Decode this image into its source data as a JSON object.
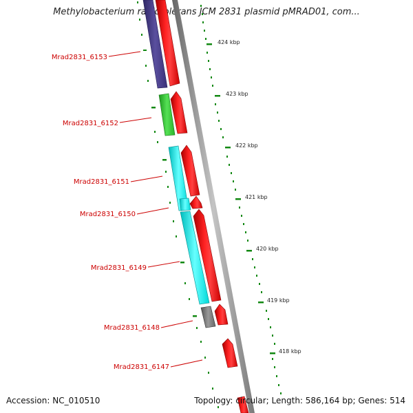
{
  "title": "Methylobacterium radiotolerans JCM 2831 plasmid pMRAD01, com...",
  "accession": "Accession: NC_010510",
  "topology": "Topology: circular; Length: 586,164 bp; Genes: 514",
  "colors": {
    "backbone": "#909090",
    "forward_gene": "#ff0000",
    "tick_green": "#118811",
    "label_red": "#cc0000",
    "purple": "#4a3f8c",
    "green": "#33cc33",
    "cyan": "#00e6e6",
    "gray": "#777777"
  },
  "kbp_ticks": [
    "424 kbp",
    "423 kbp",
    "422 kbp",
    "421 kbp",
    "420 kbp",
    "419 kbp",
    "418 kbp"
  ],
  "genes": [
    {
      "label": "Mrad2831_6153",
      "color": "purple"
    },
    {
      "label": "Mrad2831_6152",
      "color": "green"
    },
    {
      "label": "Mrad2831_6151",
      "color": "cyan"
    },
    {
      "label": "Mrad2831_6150",
      "color": "cyan"
    },
    {
      "label": "Mrad2831_6149",
      "color": "cyan"
    },
    {
      "label": "Mrad2831_6148",
      "color": "gray"
    },
    {
      "label": "Mrad2831_6147",
      "color": "none"
    }
  ]
}
